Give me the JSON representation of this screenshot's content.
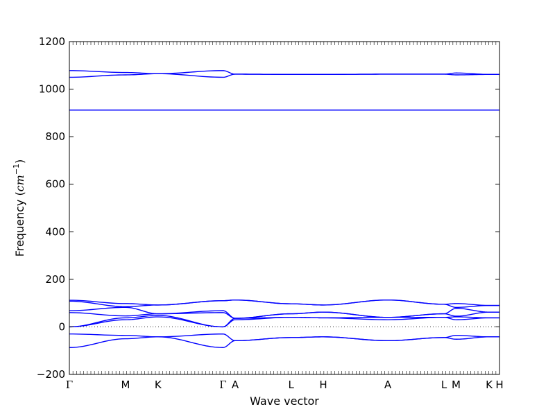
{
  "chart_data": {
    "type": "line",
    "title": "",
    "xlabel": "Wave vector",
    "ylabel": {
      "text": "Frequency (",
      "unit_base": "cm",
      "unit_exp": "−1",
      "close": ")"
    },
    "ylim": [
      -200,
      1200
    ],
    "yticks": [
      "−200",
      "0",
      "200",
      "400",
      "600",
      "800",
      "1000",
      "1200"
    ],
    "ytick_values": [
      -200,
      0,
      200,
      400,
      600,
      800,
      1000,
      1200
    ],
    "xlim": [
      0,
      1
    ],
    "high_symmetry_points": [
      {
        "label": "Γ",
        "x": 0.0
      },
      {
        "label": "M",
        "x": 0.1307
      },
      {
        "label": "K",
        "x": 0.2061
      },
      {
        "label": "Γ",
        "x": 0.3571
      },
      {
        "label": "A",
        "x": 0.3854
      },
      {
        "label": "L",
        "x": 0.5157
      },
      {
        "label": "H",
        "x": 0.5903
      },
      {
        "label": "A",
        "x": 0.7403
      },
      {
        "label": "L",
        "x": 0.871
      },
      {
        "label": "M",
        "x": 0.8992
      },
      {
        "label": "K",
        "x": 0.9758
      },
      {
        "label": "H",
        "x": 1.0
      }
    ],
    "zero_line": true,
    "line_color": "#0000ff",
    "series": [
      {
        "x": [
          0,
          0.1307,
          0.2061,
          0.3571,
          0.3854,
          0.5157,
          0.5903,
          0.7403,
          0.871,
          0.8992,
          0.9758,
          1.0
        ],
        "y": [
          -87,
          -50,
          -42,
          -87,
          -58,
          -45,
          -42,
          -58,
          -45,
          -52,
          -42,
          -42
        ]
      },
      {
        "x": [
          0,
          0.1307,
          0.2061,
          0.3571,
          0.3854,
          0.5157,
          0.5903,
          0.7403,
          0.871,
          0.8992,
          0.9758,
          1.0
        ],
        "y": [
          -30,
          -36,
          -42,
          -30,
          -58,
          -45,
          -42,
          -58,
          -45,
          -36,
          -42,
          -42
        ]
      },
      {
        "x": [
          0,
          0.1307,
          0.2061,
          0.3571,
          0.3854,
          0.5157,
          0.5903,
          0.7403,
          0.871,
          0.8992,
          0.9758,
          1.0
        ],
        "y": [
          0,
          30,
          42,
          0,
          30,
          40,
          38,
          30,
          40,
          30,
          38,
          38
        ]
      },
      {
        "x": [
          0,
          0.1307,
          0.2061,
          0.3571,
          0.3854,
          0.5157,
          0.5903,
          0.7403,
          0.871,
          0.8992,
          0.9758,
          1.0
        ],
        "y": [
          0,
          38,
          48,
          0,
          36,
          40,
          38,
          40,
          40,
          42,
          38,
          38
        ]
      },
      {
        "x": [
          0,
          0.1307,
          0.2061,
          0.3571,
          0.3854,
          0.5157,
          0.5903,
          0.7403,
          0.871,
          0.8992,
          0.9758,
          1.0
        ],
        "y": [
          60,
          46,
          55,
          60,
          36,
          55,
          62,
          40,
          55,
          45,
          62,
          62
        ]
      },
      {
        "x": [
          0,
          0.1307,
          0.2061,
          0.3571,
          0.3854,
          0.5157,
          0.5903,
          0.7403,
          0.871,
          0.8992,
          0.9758,
          1.0
        ],
        "y": [
          68,
          82,
          55,
          68,
          36,
          55,
          62,
          40,
          55,
          78,
          62,
          62
        ]
      },
      {
        "x": [
          0,
          0.1307,
          0.2061,
          0.3571,
          0.3854,
          0.5157,
          0.5903,
          0.7403,
          0.871,
          0.8992,
          0.9758,
          1.0
        ],
        "y": [
          108,
          85,
          92,
          110,
          113,
          97,
          92,
          113,
          95,
          82,
          90,
          90
        ]
      },
      {
        "x": [
          0,
          0.1307,
          0.2061,
          0.3571,
          0.3854,
          0.5157,
          0.5903,
          0.7403,
          0.871,
          0.8992,
          0.9758,
          1.0
        ],
        "y": [
          112,
          98,
          92,
          110,
          113,
          97,
          92,
          113,
          95,
          98,
          90,
          90
        ]
      },
      {
        "x": [
          0,
          0.1307,
          0.2061,
          0.3571,
          0.3854,
          0.5157,
          0.5903,
          0.7403,
          0.871,
          0.8992,
          0.9758,
          1.0
        ],
        "y": [
          912,
          912,
          912,
          912,
          912,
          912,
          912,
          912,
          912,
          912,
          912,
          912
        ]
      },
      {
        "x": [
          0,
          0.1307,
          0.2061,
          0.3571,
          0.3854,
          0.5157,
          0.5903,
          0.7403,
          0.871,
          0.8992,
          0.9758,
          1.0
        ],
        "y": [
          1050,
          1060,
          1065,
          1050,
          1063,
          1062,
          1062,
          1063,
          1063,
          1060,
          1062,
          1062
        ]
      },
      {
        "x": [
          0,
          0.1307,
          0.2061,
          0.3571,
          0.3854,
          0.5157,
          0.5903,
          0.7403,
          0.871,
          0.8992,
          0.9758,
          1.0
        ],
        "y": [
          1078,
          1070,
          1065,
          1078,
          1063,
          1062,
          1062,
          1063,
          1063,
          1068,
          1062,
          1062
        ]
      }
    ]
  }
}
